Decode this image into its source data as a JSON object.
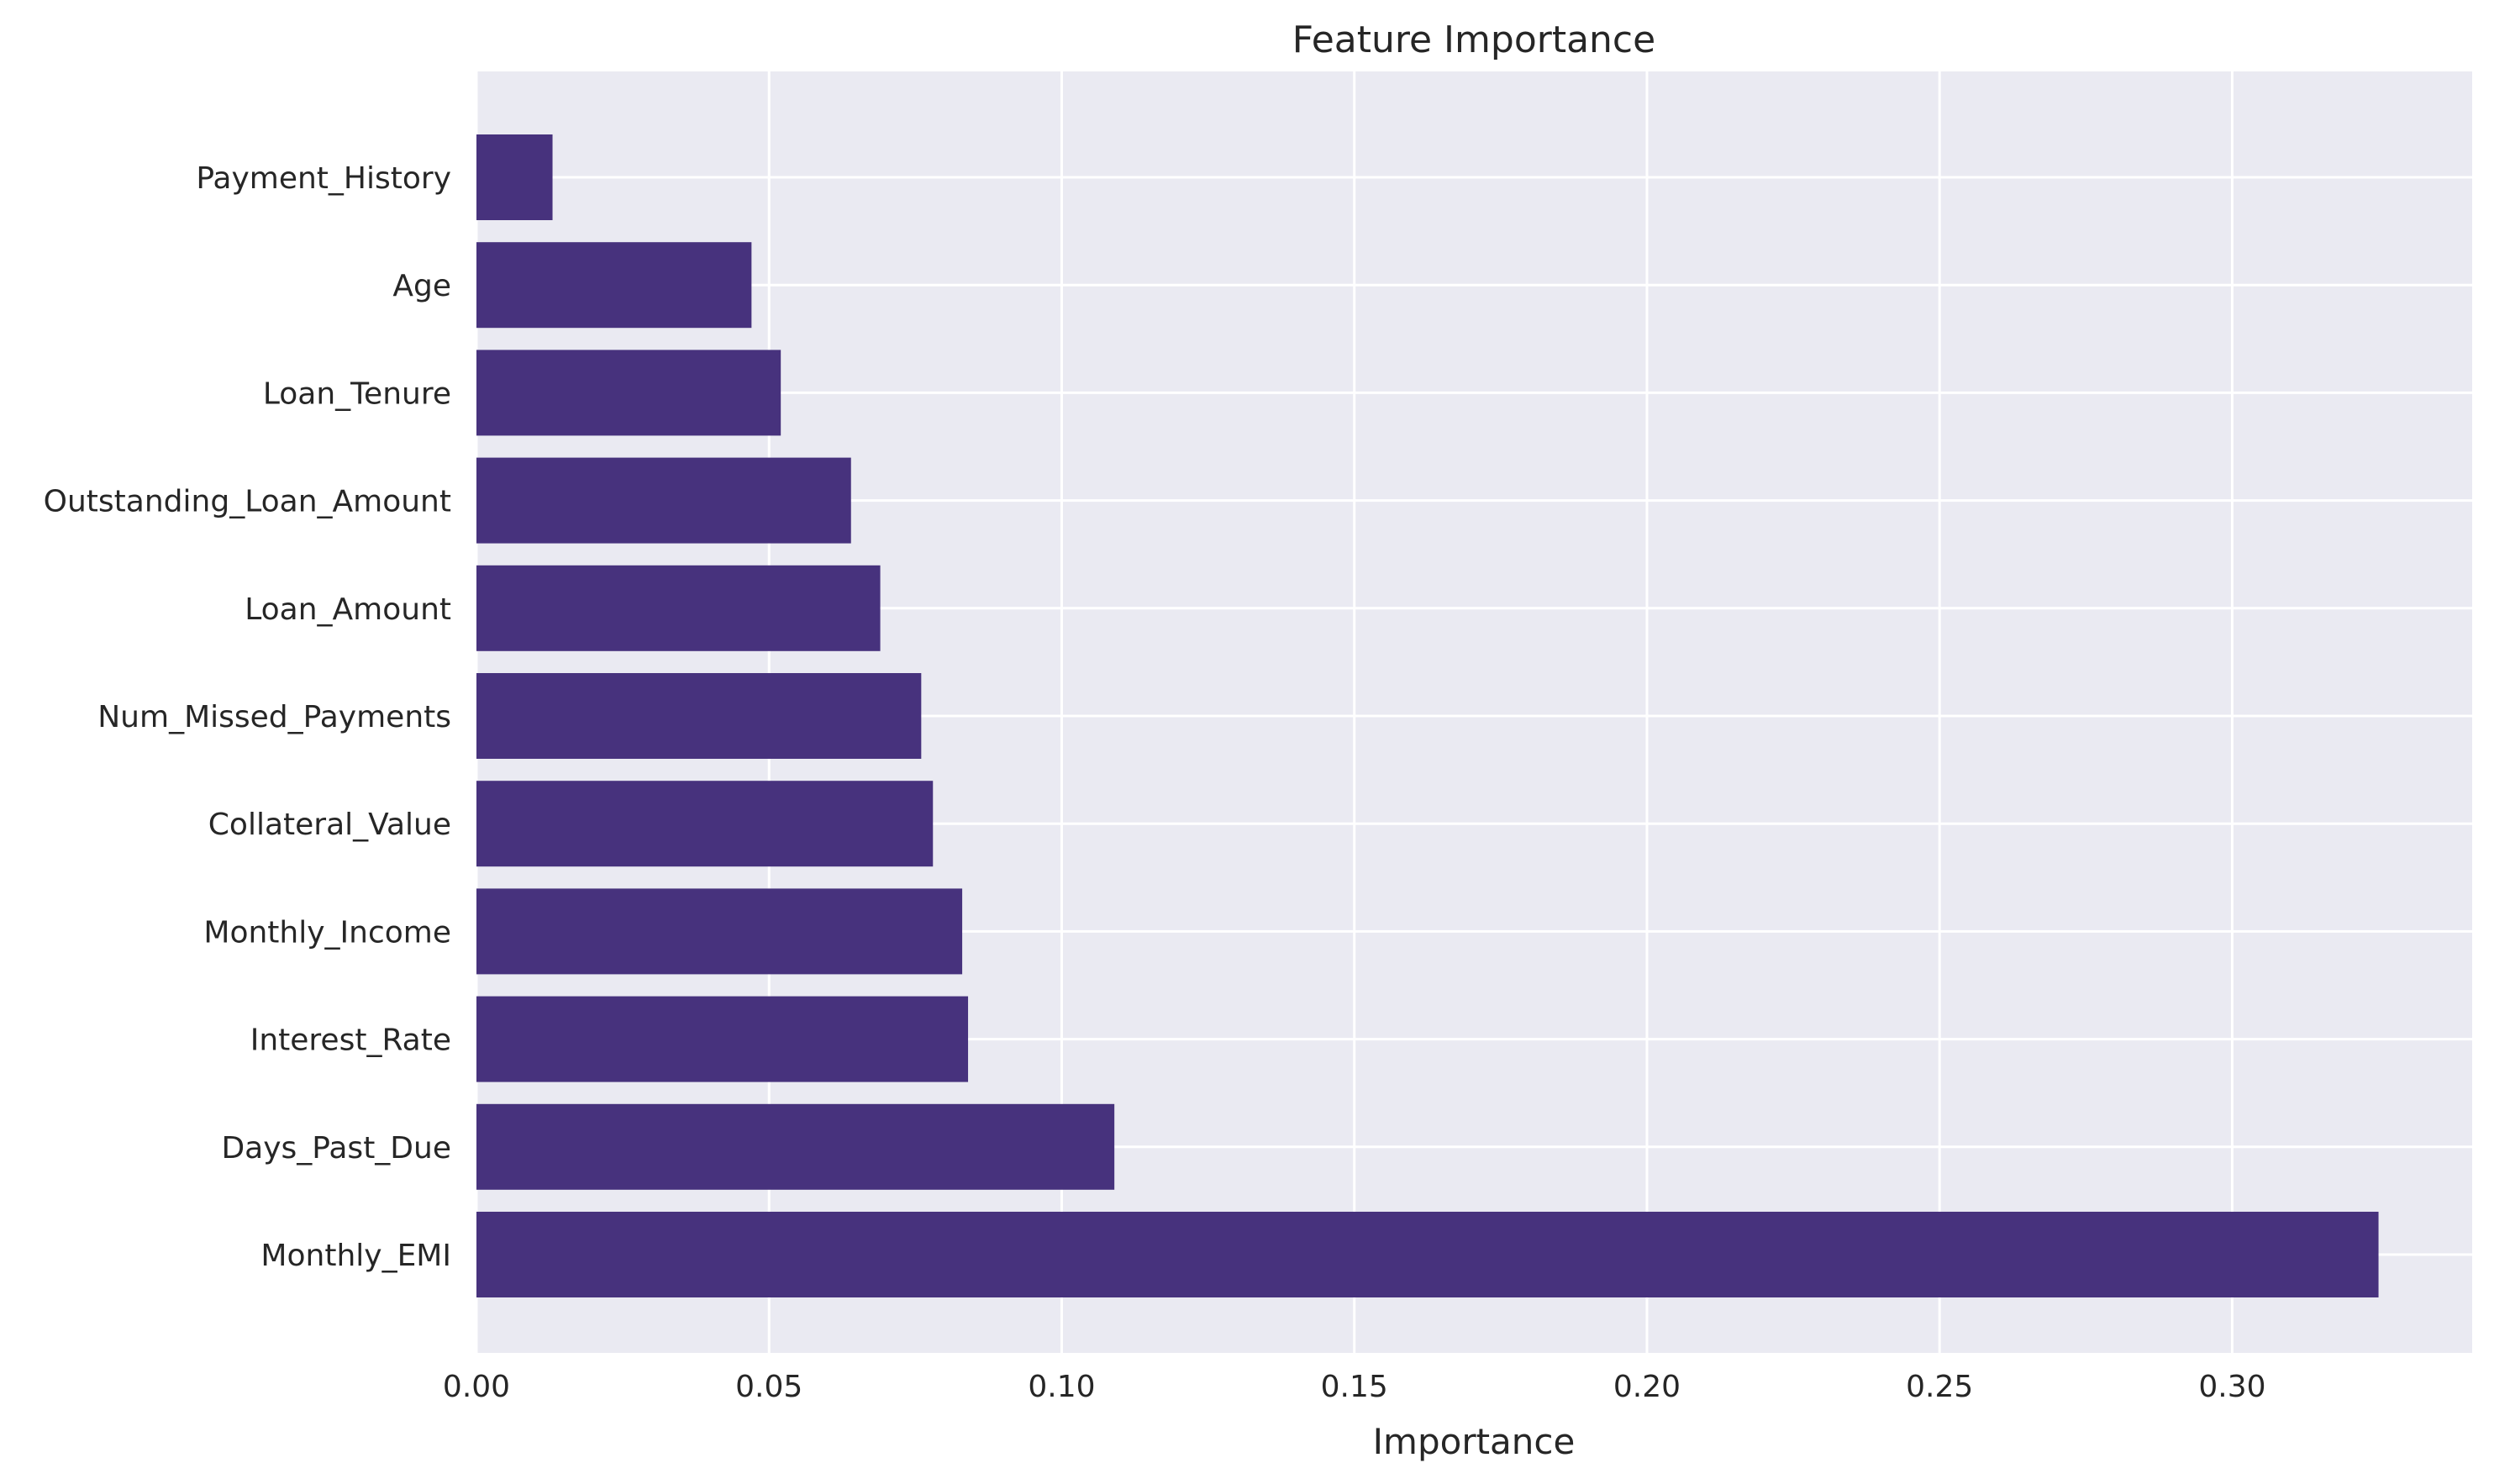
{
  "colors": {
    "bar": "#47327d",
    "plot_background": "#eaeaf2",
    "grid": "#ffffff",
    "text": "#262626"
  },
  "chart_data": {
    "type": "bar",
    "orientation": "horizontal",
    "title": "Feature Importance",
    "xlabel": "Importance",
    "ylabel": "",
    "xlim": [
      0,
      0.341
    ],
    "xticks": [
      0.0,
      0.05,
      0.1,
      0.15,
      0.2,
      0.25,
      0.3
    ],
    "xtick_labels": [
      "0.00",
      "0.05",
      "0.10",
      "0.15",
      "0.20",
      "0.25",
      "0.30"
    ],
    "grid": true,
    "legend": false,
    "categories": [
      "Payment_History",
      "Age",
      "Loan_Tenure",
      "Outstanding_Loan_Amount",
      "Loan_Amount",
      "Num_Missed_Payments",
      "Collateral_Value",
      "Monthly_Income",
      "Interest_Rate",
      "Days_Past_Due",
      "Monthly_EMI"
    ],
    "values": [
      0.013,
      0.047,
      0.052,
      0.064,
      0.069,
      0.076,
      0.078,
      0.083,
      0.084,
      0.109,
      0.325
    ]
  }
}
